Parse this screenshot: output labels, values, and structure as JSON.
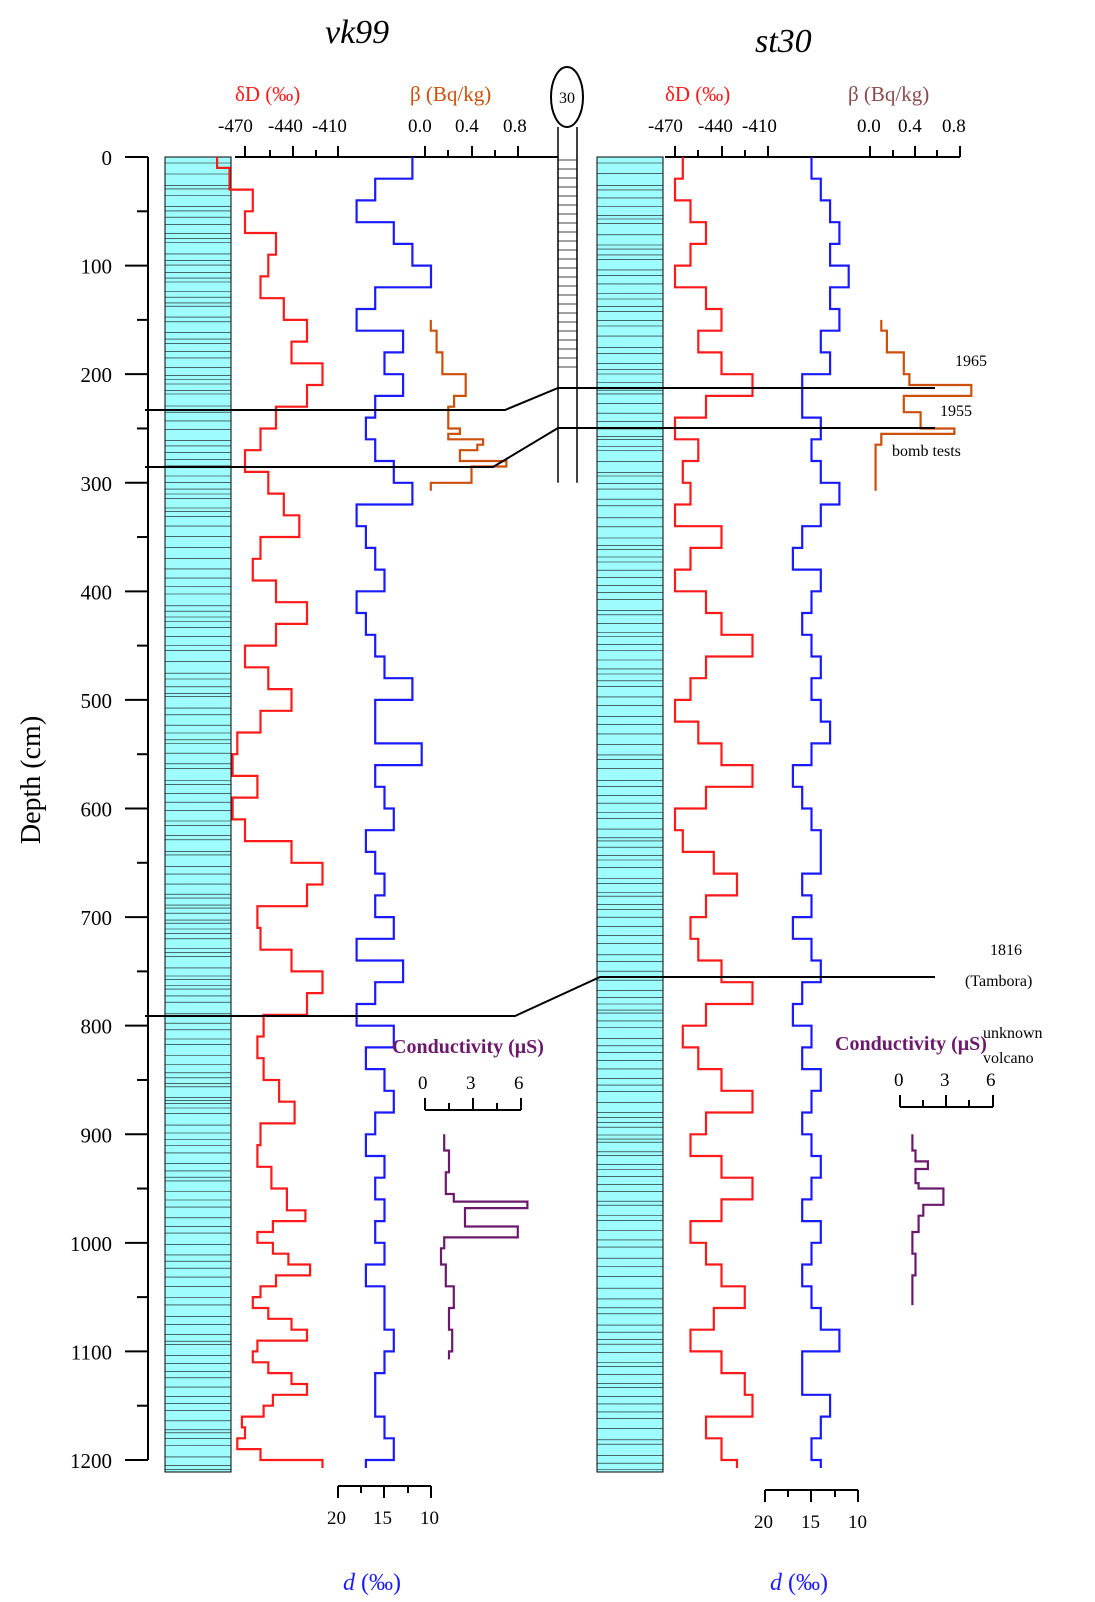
{
  "titles": {
    "left": "vk99",
    "right": "st30"
  },
  "depth_axis": {
    "label": "Depth (cm)",
    "ticks": [
      "0",
      "100",
      "200",
      "300",
      "400",
      "500",
      "600",
      "700",
      "800",
      "900",
      "1000",
      "1100",
      "1200"
    ]
  },
  "axis_labels": {
    "dD": "δD (‰)",
    "beta": "β (Bq/kg)",
    "cond": "Conductivity (μS)",
    "d_italic": "d",
    "d_unit": " (‰)"
  },
  "dD_ticks": [
    "-470",
    "-440",
    "-410"
  ],
  "beta_ticks": [
    "0.0",
    "0.4",
    "0.8"
  ],
  "cond_ticks": [
    "0",
    "3",
    "6"
  ],
  "d_ticks": [
    "20",
    "15",
    "10"
  ],
  "middle_box": "30",
  "annotations": {
    "y1965": "1965",
    "y1955": "1955",
    "bomb": "bomb tests",
    "tambora_year": "1816",
    "tambora_name": "(Tambora)",
    "unknown1": "unknown",
    "unknown2": "volcano"
  },
  "colors": {
    "dD": "#ff1a1a",
    "d": "#1a1aff",
    "beta": "#cc4f0a",
    "cond": "#6b1a6b",
    "core": "#9ffcfc"
  },
  "chart_data": [
    {
      "type": "line",
      "title": "vk99",
      "ylabel": "Depth (cm)",
      "ylim": [
        0,
        1200
      ],
      "series": [
        {
          "name": "δD (‰)",
          "xlim": [
            -495,
            -385
          ],
          "x": [
            -488,
            -480,
            -465,
            -470,
            -450,
            -455,
            -460,
            -445,
            -430,
            -440,
            -420,
            -430,
            -450,
            -460,
            -470,
            -455,
            -445,
            -435,
            -460,
            -465,
            -450,
            -430,
            -450,
            -470,
            -455,
            -440,
            -460,
            -475,
            -478,
            -462,
            -478,
            -470,
            -440,
            -420,
            -430,
            -462,
            -460,
            -440,
            -420,
            -430,
            -458,
            -462,
            -458,
            -448,
            -438,
            -460,
            -462,
            -453,
            -443,
            -431,
            -452,
            -462,
            -452,
            -442,
            -428,
            -450,
            -460,
            -465,
            -455,
            -440,
            -430,
            -462,
            -465,
            -455,
            -440,
            -430,
            -452,
            -458,
            -472,
            -470,
            -475,
            -460,
            -420,
            -455,
            -470,
            -470,
            -470,
            -460,
            -455,
            -465,
            -455,
            -450,
            -470,
            -463,
            -460
          ],
          "y": [
            0,
            10,
            30,
            50,
            70,
            90,
            110,
            130,
            150,
            170,
            190,
            210,
            230,
            250,
            270,
            290,
            310,
            330,
            350,
            370,
            390,
            410,
            430,
            450,
            470,
            490,
            510,
            530,
            550,
            570,
            590,
            610,
            630,
            650,
            670,
            690,
            710,
            730,
            750,
            770,
            790,
            810,
            830,
            850,
            870,
            890,
            910,
            930,
            950,
            970,
            980,
            990,
            1000,
            1010,
            1020,
            1030,
            1040,
            1050,
            1060,
            1070,
            1080,
            1090,
            1100,
            1110,
            1120,
            1130,
            1140,
            1150,
            1160,
            1170,
            1180,
            1190,
            1200,
            1200,
            1200,
            1200,
            1200,
            1200,
            1200,
            1200,
            1200,
            1200,
            1200,
            1200,
            1200
          ]
        },
        {
          "name": "d (‰)",
          "xlim": [
            25,
            7
          ],
          "x": [
            12,
            16,
            18,
            14,
            12,
            10,
            16,
            18,
            13,
            15,
            13,
            16,
            17,
            16,
            14,
            12,
            18,
            17,
            16,
            15,
            18,
            17,
            16,
            15,
            12,
            16,
            16,
            11,
            16,
            15,
            14,
            17,
            16,
            15,
            16,
            14,
            18,
            13,
            16,
            18,
            14,
            17,
            15,
            14,
            16,
            17,
            15,
            16,
            15,
            16,
            15,
            17,
            15,
            15,
            14,
            15,
            16,
            16,
            15,
            14,
            17,
            17,
            14,
            15,
            13,
            16,
            17,
            15,
            12,
            14,
            16,
            16,
            14
          ],
          "y": [
            0,
            20,
            40,
            60,
            80,
            100,
            120,
            140,
            160,
            180,
            200,
            220,
            240,
            260,
            280,
            300,
            320,
            340,
            360,
            380,
            400,
            420,
            440,
            460,
            480,
            500,
            520,
            540,
            560,
            580,
            600,
            620,
            640,
            660,
            680,
            700,
            720,
            740,
            760,
            780,
            800,
            820,
            840,
            860,
            880,
            900,
            920,
            940,
            960,
            980,
            1000,
            1020,
            1040,
            1060,
            1080,
            1100,
            1120,
            1140,
            1160,
            1180,
            1200,
            1200,
            1200,
            1200,
            1200,
            1200,
            1200,
            1200,
            1200,
            1200,
            1200,
            1200,
            1200
          ]
        },
        {
          "name": "β (Bq/kg)",
          "xlim": [
            0,
            0.8
          ],
          "x": [
            0.05,
            0.1,
            0.15,
            0.35,
            0.25,
            0.2,
            0.2,
            0.3,
            0.2,
            0.5,
            0.45,
            0.3,
            0.7,
            0.4,
            0.05
          ],
          "y": [
            150,
            160,
            180,
            200,
            220,
            230,
            240,
            250,
            255,
            260,
            265,
            270,
            280,
            285,
            300
          ]
        },
        {
          "name": "Conductivity (μS)",
          "xlim": [
            0,
            6
          ],
          "x": [
            1.2,
            1.5,
            1.3,
            1.8,
            6.4,
            2.5,
            5.8,
            1.2,
            1.0,
            1.3,
            1.8,
            1.5,
            1.7,
            1.5
          ],
          "y": [
            900,
            915,
            935,
            955,
            962,
            968,
            985,
            995,
            1005,
            1020,
            1040,
            1060,
            1080,
            1100
          ]
        }
      ]
    },
    {
      "type": "line",
      "title": "st30",
      "ylabel": "Depth (cm)",
      "ylim": [
        0,
        1200
      ],
      "series": [
        {
          "name": "δD (‰)",
          "xlim": [
            -495,
            -385
          ],
          "x": [
            -465,
            -470,
            -460,
            -450,
            -460,
            -470,
            -450,
            -440,
            -455,
            -440,
            -420,
            -450,
            -470,
            -455,
            -465,
            -460,
            -470,
            -440,
            -460,
            -470,
            -450,
            -440,
            -420,
            -450,
            -460,
            -470,
            -455,
            -440,
            -420,
            -450,
            -470,
            -465,
            -445,
            -430,
            -450,
            -460,
            -455,
            -440,
            -420,
            -450,
            -465,
            -455,
            -440,
            -420,
            -450,
            -460,
            -440,
            -420,
            -440,
            -460,
            -450,
            -440,
            -425,
            -445,
            -460,
            -440,
            -425,
            -420,
            -450,
            -440,
            -430
          ],
          "y": [
            0,
            20,
            40,
            60,
            80,
            100,
            120,
            140,
            160,
            180,
            200,
            220,
            240,
            260,
            280,
            300,
            320,
            340,
            360,
            380,
            400,
            420,
            440,
            460,
            480,
            500,
            520,
            540,
            560,
            580,
            600,
            620,
            640,
            660,
            680,
            700,
            720,
            740,
            760,
            780,
            800,
            820,
            840,
            860,
            880,
            900,
            920,
            940,
            960,
            980,
            1000,
            1020,
            1040,
            1060,
            1080,
            1100,
            1120,
            1140,
            1160,
            1180,
            1200
          ]
        },
        {
          "name": "d (‰)",
          "xlim": [
            25,
            7
          ],
          "x": [
            15,
            14,
            13,
            12,
            13,
            11,
            13,
            12,
            14,
            13,
            16,
            16,
            14,
            15,
            14,
            12,
            14,
            16,
            17,
            14,
            15,
            16,
            15,
            14,
            15,
            14,
            13,
            15,
            17,
            16,
            15,
            14,
            14,
            16,
            15,
            17,
            15,
            14,
            16,
            17,
            15,
            16,
            14,
            15,
            16,
            15,
            14,
            15,
            16,
            14,
            15,
            16,
            15,
            14,
            12,
            16,
            16,
            13,
            14,
            15,
            14
          ],
          "y": [
            0,
            20,
            40,
            60,
            80,
            100,
            120,
            140,
            160,
            180,
            200,
            220,
            240,
            260,
            280,
            300,
            320,
            340,
            360,
            380,
            400,
            420,
            440,
            460,
            480,
            500,
            520,
            540,
            560,
            580,
            600,
            620,
            640,
            660,
            680,
            700,
            720,
            740,
            760,
            780,
            800,
            820,
            840,
            860,
            880,
            900,
            920,
            940,
            960,
            980,
            1000,
            1020,
            1040,
            1060,
            1080,
            1100,
            1120,
            1140,
            1160,
            1180,
            1200
          ]
        },
        {
          "name": "β (Bq/kg)",
          "xlim": [
            0,
            0.8
          ],
          "x": [
            0.1,
            0.15,
            0.3,
            0.35,
            0.9,
            0.3,
            0.45,
            0.75,
            0.1,
            0.05,
            0.05,
            0.05
          ],
          "y": [
            150,
            160,
            180,
            200,
            210,
            220,
            235,
            250,
            255,
            265,
            280,
            300
          ]
        },
        {
          "name": "Conductivity (μS)",
          "xlim": [
            0,
            6
          ],
          "x": [
            0.8,
            1.0,
            1.8,
            1.0,
            1.2,
            2.8,
            1.5,
            1.2,
            0.8,
            1.0,
            0.8,
            0.8
          ],
          "y": [
            900,
            915,
            925,
            932,
            945,
            950,
            965,
            975,
            990,
            1010,
            1030,
            1050
          ]
        }
      ]
    }
  ]
}
